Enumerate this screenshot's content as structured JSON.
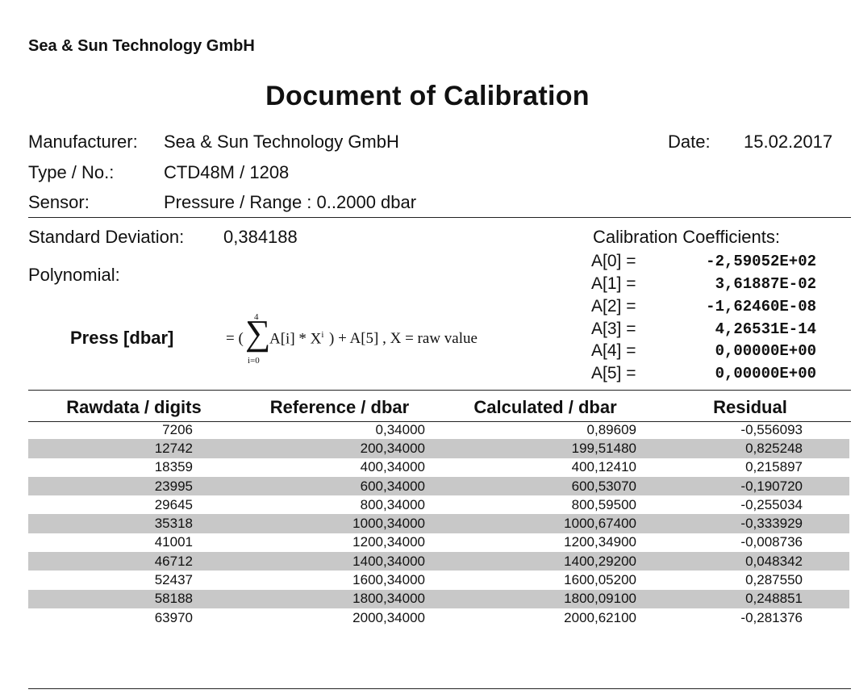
{
  "company": "Sea & Sun Technology GmbH",
  "title": "Document of Calibration",
  "manufacturer": {
    "label": "Manufacturer:",
    "value": "Sea & Sun Technology GmbH"
  },
  "date": {
    "label": "Date:",
    "value": "15.02.2017"
  },
  "type": {
    "label": "Type / No.:",
    "value": "CTD48M / 1208"
  },
  "sensor": {
    "label": "Sensor:",
    "value": "Pressure / Range : 0..2000 dbar"
  },
  "std_dev": {
    "label": "Standard Deviation:",
    "value": "0,384188"
  },
  "polynomial_label": "Polynomial:",
  "coefficients": {
    "title": "Calibration Coefficients:",
    "items": [
      {
        "label": "A[0] =",
        "value": "-2,59052E+02"
      },
      {
        "label": "A[1] =",
        "value": "3,61887E-02"
      },
      {
        "label": "A[2] =",
        "value": "-1,62460E-08"
      },
      {
        "label": "A[3] =",
        "value": "4,26531E-14"
      },
      {
        "label": "A[4] =",
        "value": "0,00000E+00"
      },
      {
        "label": "A[5] =",
        "value": "0,00000E+00"
      }
    ]
  },
  "formula": {
    "lhs": "Press [dbar]",
    "open": "= (",
    "sum_upper": "4",
    "sum_lower": "i=0",
    "sum_symbol": "∑",
    "term": "A[i] * X",
    "term_exp": "i",
    "close": ") + A[5] , X = raw value"
  },
  "table": {
    "headers": [
      "Rawdata / digits",
      "Reference / dbar",
      "Calculated / dbar",
      "Residual"
    ],
    "rows": [
      [
        "7206",
        "0,34000",
        "0,89609",
        "-0,556093"
      ],
      [
        "12742",
        "200,34000",
        "199,51480",
        "0,825248"
      ],
      [
        "18359",
        "400,34000",
        "400,12410",
        "0,215897"
      ],
      [
        "23995",
        "600,34000",
        "600,53070",
        "-0,190720"
      ],
      [
        "29645",
        "800,34000",
        "800,59500",
        "-0,255034"
      ],
      [
        "35318",
        "1000,34000",
        "1000,67400",
        "-0,333929"
      ],
      [
        "41001",
        "1200,34000",
        "1200,34900",
        "-0,008736"
      ],
      [
        "46712",
        "1400,34000",
        "1400,29200",
        "0,048342"
      ],
      [
        "52437",
        "1600,34000",
        "1600,05200",
        "0,287550"
      ],
      [
        "58188",
        "1800,34000",
        "1800,09100",
        "0,248851"
      ],
      [
        "63970",
        "2000,34000",
        "2000,62100",
        "-0,281376"
      ]
    ]
  }
}
